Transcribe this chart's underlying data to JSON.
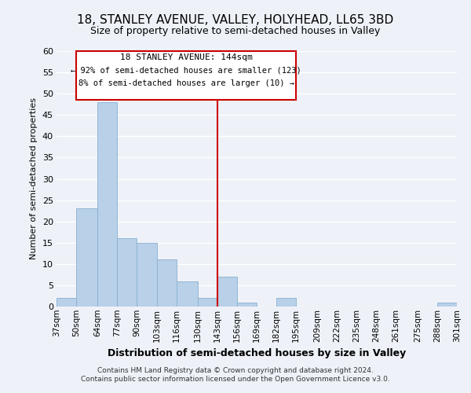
{
  "title": "18, STANLEY AVENUE, VALLEY, HOLYHEAD, LL65 3BD",
  "subtitle": "Size of property relative to semi-detached houses in Valley",
  "xlabel": "Distribution of semi-detached houses by size in Valley",
  "ylabel": "Number of semi-detached properties",
  "bin_labels": [
    "37sqm",
    "50sqm",
    "64sqm",
    "77sqm",
    "90sqm",
    "103sqm",
    "116sqm",
    "130sqm",
    "143sqm",
    "156sqm",
    "169sqm",
    "182sqm",
    "195sqm",
    "209sqm",
    "222sqm",
    "235sqm",
    "248sqm",
    "261sqm",
    "275sqm",
    "288sqm",
    "301sqm"
  ],
  "bin_edges": [
    37,
    50,
    64,
    77,
    90,
    103,
    116,
    130,
    143,
    156,
    169,
    182,
    195,
    209,
    222,
    235,
    248,
    261,
    275,
    288,
    301
  ],
  "bar_heights": [
    2,
    23,
    48,
    16,
    15,
    11,
    6,
    2,
    7,
    1,
    0,
    2,
    0,
    0,
    0,
    0,
    0,
    0,
    0,
    1
  ],
  "bar_color": "#b8d0e8",
  "bar_edge_color": "#8ab0cf",
  "property_line_x": 143,
  "property_line_color": "#cc0000",
  "annotation_title": "18 STANLEY AVENUE: 144sqm",
  "annotation_line1": "← 92% of semi-detached houses are smaller (123)",
  "annotation_line2": "8% of semi-detached houses are larger (10) →",
  "annotation_box_color": "#cc0000",
  "ylim": [
    0,
    60
  ],
  "yticks": [
    0,
    5,
    10,
    15,
    20,
    25,
    30,
    35,
    40,
    45,
    50,
    55,
    60
  ],
  "footer_line1": "Contains HM Land Registry data © Crown copyright and database right 2024.",
  "footer_line2": "Contains public sector information licensed under the Open Government Licence v3.0.",
  "bg_color": "#eef2f8",
  "grid_color": "#ffffff"
}
